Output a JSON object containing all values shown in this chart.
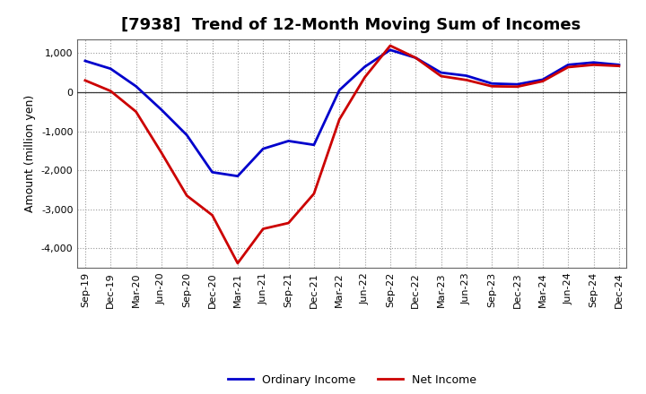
{
  "title": "[7938]  Trend of 12-Month Moving Sum of Incomes",
  "ylabel": "Amount (million yen)",
  "x_labels": [
    "Sep-19",
    "Dec-19",
    "Mar-20",
    "Jun-20",
    "Sep-20",
    "Dec-20",
    "Mar-21",
    "Jun-21",
    "Sep-21",
    "Dec-21",
    "Mar-22",
    "Jun-22",
    "Sep-22",
    "Dec-22",
    "Mar-23",
    "Jun-23",
    "Sep-23",
    "Dec-23",
    "Mar-24",
    "Jun-24",
    "Sep-24",
    "Dec-24"
  ],
  "ordinary_income": [
    800,
    600,
    150,
    -450,
    -1100,
    -2050,
    -2150,
    -1450,
    -1250,
    -1350,
    50,
    650,
    1080,
    880,
    500,
    420,
    220,
    200,
    320,
    700,
    760,
    700
  ],
  "net_income": [
    300,
    30,
    -500,
    -1550,
    -2650,
    -3150,
    -4380,
    -3500,
    -3350,
    -2600,
    -700,
    380,
    1190,
    880,
    410,
    310,
    150,
    140,
    280,
    640,
    700,
    670
  ],
  "ordinary_color": "#0000cc",
  "net_color": "#cc0000",
  "ylim": [
    -4500,
    1350
  ],
  "yticks": [
    -4000,
    -3000,
    -2000,
    -1000,
    0,
    1000
  ],
  "background_color": "#ffffff",
  "grid_color": "#999999",
  "legend_labels": [
    "Ordinary Income",
    "Net Income"
  ],
  "line_width": 2.0,
  "title_fontsize": 13,
  "tick_fontsize": 8,
  "ylabel_fontsize": 9
}
